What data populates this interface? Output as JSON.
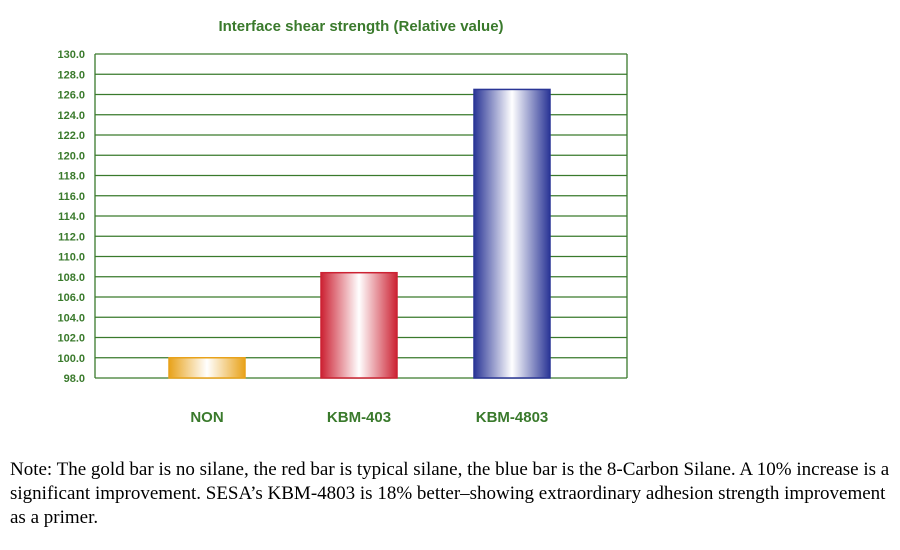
{
  "chart_data": {
    "type": "bar",
    "title": "Interface shear strength (Relative value)",
    "categories": [
      "NON",
      "KBM-403",
      "KBM-4803"
    ],
    "values": [
      100.0,
      108.4,
      126.5
    ],
    "bar_colors": [
      "#e8a21a",
      "#cc2233",
      "#2a3596"
    ],
    "ylim": [
      98.0,
      130.0
    ],
    "ytick_step": 2.0,
    "yticks": [
      "98.0",
      "100.0",
      "102.0",
      "104.0",
      "106.0",
      "108.0",
      "110.0",
      "112.0",
      "114.0",
      "116.0",
      "118.0",
      "120.0",
      "122.0",
      "124.0",
      "126.0",
      "128.0",
      "130.0"
    ],
    "xlabel": "",
    "ylabel": "",
    "grid": true,
    "grid_color": "#3a7a2c"
  },
  "note": "Note: The gold bar is no silane, the red bar is typical silane, the blue bar is the 8-Carbon Silane. A 10% increase is a significant improvement. SESA’s KBM-4803 is 18% better–showing extraordinary adhesion strength improvement as a primer."
}
